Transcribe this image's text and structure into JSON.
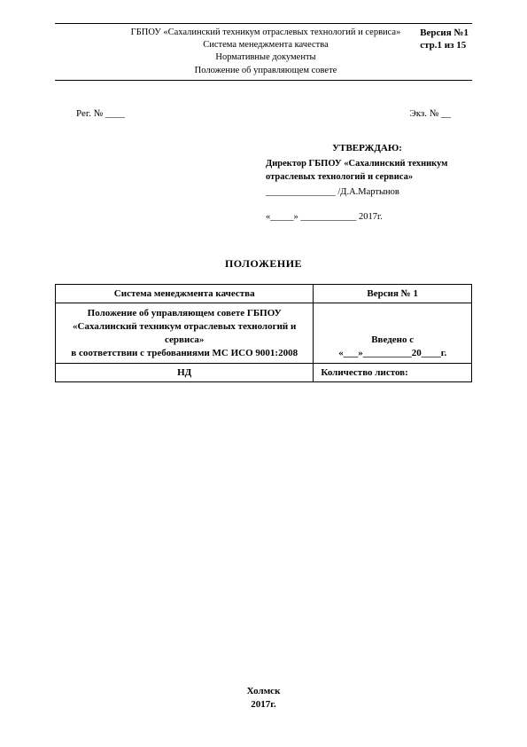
{
  "header": {
    "line1": "ГБПОУ  «Сахалинский техникум отраслевых технологий и сервиса»",
    "line2": "Система менеджмента качества",
    "line3": "Нормативные документы",
    "line4": "Положение об управляющем совете",
    "version": "Версия №1",
    "page": "стр.1 из 15"
  },
  "reg": {
    "left": "Рег. № ____",
    "right": "Экз. № __"
  },
  "approve": {
    "title": "УТВЕРЖДАЮ:",
    "org1": "Директор ГБПОУ  «Сахалинский техникум",
    "org2": "отраслевых технологий и сервиса»",
    "sig": "_______________ /Д.А.Мартынов",
    "date": "«_____» ____________  2017г."
  },
  "title": "ПОЛОЖЕНИЕ",
  "table": {
    "r1c1": "Система менеджмента качества",
    "r1c2": "Версия № 1",
    "r2c1a": "Положение об управляющем совете  ГБПОУ",
    "r2c1b": "«Сахалинский  техникум отраслевых технологий и",
    "r2c1c": "сервиса»",
    "r2c1d": "в соответствии с требованиями МС ИСО 9001:2008",
    "r2c2a": "Введено с",
    "r2c2b": "«___»__________20____г.",
    "r3c1": "НД",
    "r3c2": "Количество листов:"
  },
  "footer": {
    "city": "Холмск",
    "year": "2017г."
  }
}
